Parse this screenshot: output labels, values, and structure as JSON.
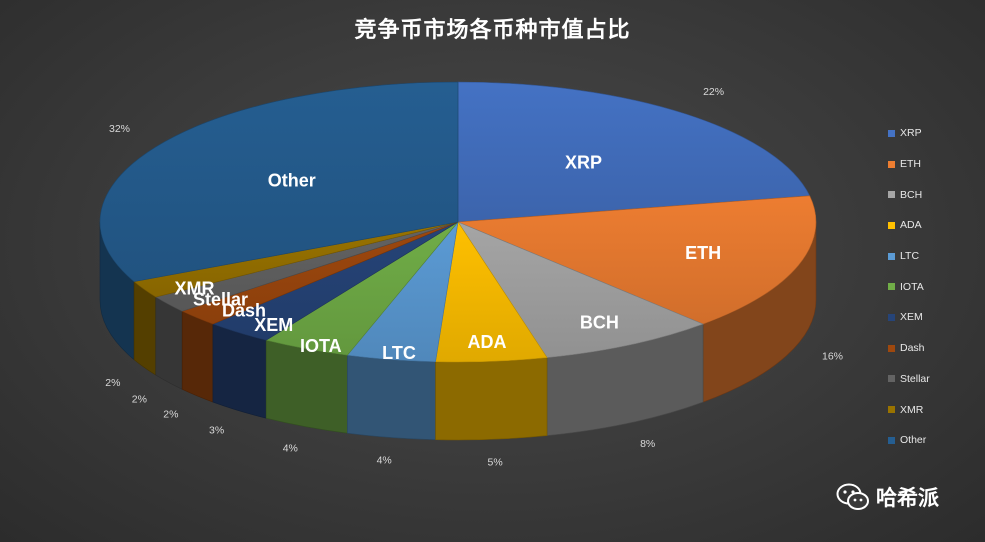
{
  "chart_data": {
    "type": "pie",
    "title": "竞争币市场各币种市值占比",
    "legend_position": "right",
    "categories": [
      "XRP",
      "ETH",
      "BCH",
      "ADA",
      "LTC",
      "IOTA",
      "XEM",
      "Dash",
      "Stellar",
      "XMR",
      "Other"
    ],
    "values": [
      22,
      16,
      8,
      5,
      4,
      4,
      3,
      2,
      2,
      2,
      32
    ],
    "percent_labels": [
      "22%",
      "16%",
      "8%",
      "5%",
      "4%",
      "4%",
      "3%",
      "2%",
      "2%",
      "2%",
      "32%"
    ],
    "colors": [
      "#4472c4",
      "#ed7d31",
      "#a5a5a5",
      "#ffc000",
      "#5b9bd5",
      "#70ad47",
      "#264478",
      "#9e480e",
      "#636363",
      "#997300",
      "#255e91"
    ]
  },
  "watermark": {
    "text": "哈希派",
    "icon": "wechat-icon"
  }
}
